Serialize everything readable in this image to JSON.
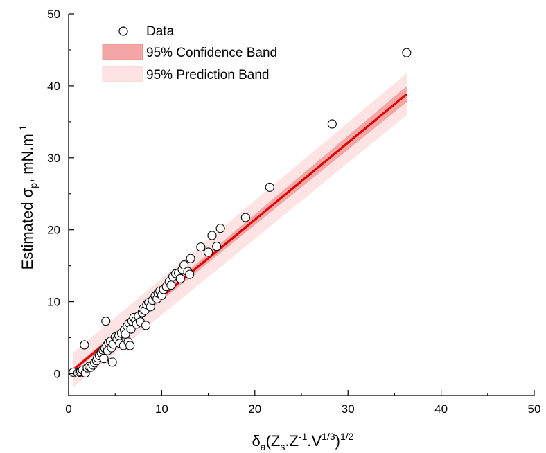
{
  "chart_data": {
    "type": "scatter",
    "title": "",
    "xlabel": {
      "base": "δ",
      "sub_a": "a",
      "open": "(Z",
      "sub_s": "s",
      "mid": ".Z",
      "sup_m1": "-1",
      "dotv": ".V",
      "sup_13": "1/3",
      "close": ")",
      "sup_12": "1/2"
    },
    "ylabel": {
      "pre": "Estimated σ",
      "sub": "p",
      "post": ", mN.m",
      "sup": "-1"
    },
    "xlim": [
      0,
      50
    ],
    "ylim": [
      -3,
      50
    ],
    "x_ticks": [
      "0",
      "10",
      "20",
      "30",
      "40",
      "50"
    ],
    "y_ticks": [
      "0",
      "10",
      "20",
      "30",
      "40",
      "50"
    ],
    "grid": false,
    "legend_position": "top-left",
    "legend": [
      {
        "label": "Data",
        "kind": "marker"
      },
      {
        "label": "95% Confidence Band",
        "kind": "band",
        "color": "#f4a6a6"
      },
      {
        "label": "95% Prediction Band",
        "kind": "band",
        "color": "#fde3e3"
      }
    ],
    "colors": {
      "fit_line": "#e00000",
      "confidence_band": "#f4a6a6",
      "prediction_band": "#fde3e3",
      "marker_fill": "#ffffff",
      "marker_stroke": "#000000"
    },
    "fit": {
      "slope": 1.07,
      "intercept": 0.0,
      "x_range": [
        0.5,
        36.3
      ],
      "confidence_halfwidth": [
        0.3,
        1.1
      ],
      "prediction_halfwidth": [
        2.4,
        2.9
      ]
    },
    "series": [
      {
        "name": "Data",
        "points": [
          [
            0.5,
            0.2
          ],
          [
            1.0,
            0.1
          ],
          [
            1.2,
            0.2
          ],
          [
            1.3,
            0.3
          ],
          [
            1.5,
            0.5
          ],
          [
            1.7,
            4.0
          ],
          [
            1.8,
            0.1
          ],
          [
            2.0,
            0.8
          ],
          [
            2.2,
            1.0
          ],
          [
            2.4,
            0.9
          ],
          [
            2.6,
            1.2
          ],
          [
            2.8,
            1.5
          ],
          [
            3.0,
            1.8
          ],
          [
            3.1,
            2.2
          ],
          [
            3.3,
            2.5
          ],
          [
            3.5,
            2.9
          ],
          [
            3.7,
            3.3
          ],
          [
            3.8,
            2.1
          ],
          [
            3.9,
            3.5
          ],
          [
            4.0,
            7.3
          ],
          [
            4.1,
            3.9
          ],
          [
            4.2,
            3.2
          ],
          [
            4.3,
            4.3
          ],
          [
            4.5,
            4.5
          ],
          [
            4.6,
            3.6
          ],
          [
            4.7,
            1.6
          ],
          [
            4.8,
            4.1
          ],
          [
            5.0,
            5.1
          ],
          [
            5.2,
            4.8
          ],
          [
            5.4,
            5.3
          ],
          [
            5.5,
            4.2
          ],
          [
            5.7,
            5.6
          ],
          [
            5.9,
            3.9
          ],
          [
            6.0,
            6.1
          ],
          [
            6.1,
            5.5
          ],
          [
            6.3,
            6.6
          ],
          [
            6.4,
            4.4
          ],
          [
            6.5,
            7.0
          ],
          [
            6.6,
            3.9
          ],
          [
            6.7,
            6.2
          ],
          [
            6.8,
            7.3
          ],
          [
            7.0,
            7.8
          ],
          [
            7.2,
            7.4
          ],
          [
            7.3,
            6.9
          ],
          [
            7.5,
            8.0
          ],
          [
            7.7,
            7.2
          ],
          [
            7.9,
            8.5
          ],
          [
            8.0,
            9.0
          ],
          [
            8.2,
            8.8
          ],
          [
            8.3,
            6.7
          ],
          [
            8.4,
            9.6
          ],
          [
            8.6,
            9.9
          ],
          [
            8.8,
            9.3
          ],
          [
            9.0,
            10.2
          ],
          [
            9.3,
            10.8
          ],
          [
            9.5,
            10.4
          ],
          [
            9.6,
            11.2
          ],
          [
            9.8,
            11.5
          ],
          [
            10.0,
            10.9
          ],
          [
            10.2,
            11.7
          ],
          [
            10.5,
            12.1
          ],
          [
            10.8,
            12.8
          ],
          [
            11.0,
            12.3
          ],
          [
            11.2,
            13.5
          ],
          [
            11.5,
            13.9
          ],
          [
            11.8,
            14.0
          ],
          [
            12.0,
            13.2
          ],
          [
            12.2,
            14.5
          ],
          [
            12.4,
            15.1
          ],
          [
            12.8,
            14.2
          ],
          [
            13.0,
            13.8
          ],
          [
            13.1,
            16.0
          ],
          [
            14.2,
            17.6
          ],
          [
            15.0,
            16.9
          ],
          [
            15.4,
            19.2
          ],
          [
            15.9,
            17.7
          ],
          [
            16.3,
            20.2
          ],
          [
            19.0,
            21.7
          ],
          [
            21.6,
            25.9
          ],
          [
            28.3,
            34.7
          ],
          [
            36.3,
            44.6
          ]
        ]
      }
    ]
  }
}
